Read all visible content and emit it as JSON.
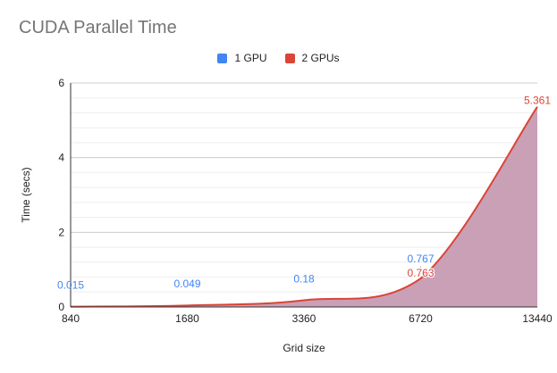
{
  "chart_data": {
    "type": "area",
    "title": "CUDA Parallel Time",
    "xlabel": "Grid size",
    "ylabel": "Time (secs)",
    "categories": [
      "840",
      "1680",
      "3360",
      "6720",
      "13440"
    ],
    "ylim": [
      0,
      6
    ],
    "yticks": [
      "0",
      "2",
      "4",
      "6"
    ],
    "grid": true,
    "legend_position": "top",
    "series": [
      {
        "name": "1 GPU",
        "color": "#4285f4",
        "values": [
          0.015,
          0.049,
          0.18,
          0.767,
          null
        ],
        "labels": [
          "0.015",
          "0.049",
          "0.18",
          "0.767",
          ""
        ]
      },
      {
        "name": "2 GPUs",
        "color": "#db4437",
        "values": [
          0.01,
          0.04,
          0.18,
          0.763,
          5.361
        ],
        "labels": [
          "",
          "",
          "",
          "0.763",
          "5.361"
        ],
        "fill": "#c9a0b6"
      }
    ]
  }
}
